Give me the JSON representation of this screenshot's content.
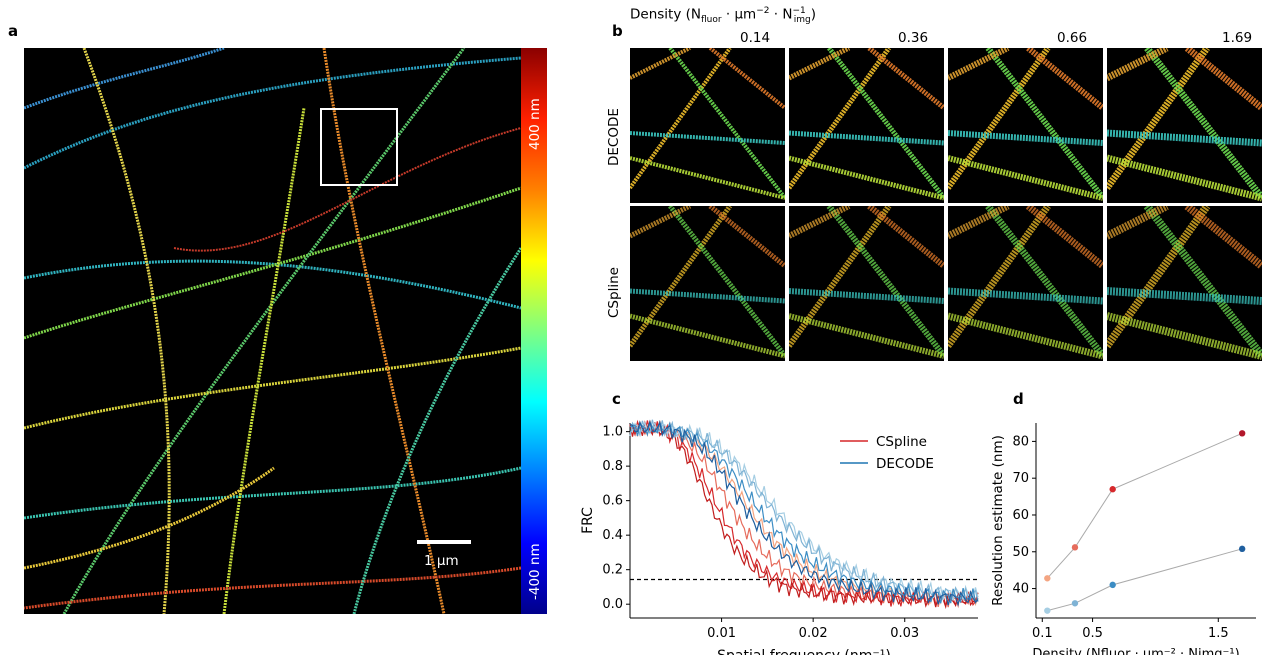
{
  "panels": {
    "a": "a",
    "b": "b",
    "c": "c",
    "d": "d"
  },
  "panel_a": {
    "colorbar_top_label": "400 nm",
    "colorbar_bottom_label": "-400 nm",
    "scalebar_label": "1 μm"
  },
  "panel_b": {
    "density_title_prefix": "Density (N",
    "density_title_sub1": "fluor",
    "density_title_mid": " · μm",
    "density_title_sup": "−2",
    "density_title_mid2": " · N",
    "density_title_sup2": "−1",
    "density_title_sub2": "img",
    "density_title_suffix": ")",
    "densities": [
      "0.14",
      "0.36",
      "0.66",
      "1.69"
    ],
    "rows": [
      "DECODE",
      "CSpline"
    ]
  },
  "chart_data": [
    {
      "type": "line",
      "panel": "c",
      "xlabel": "Spatial frequency (nm⁻¹)",
      "ylabel": "FRC",
      "xlim": [
        0,
        0.038
      ],
      "ylim": [
        -0.08,
        1.05
      ],
      "xticks": [
        "0.01",
        "0.02",
        "0.03"
      ],
      "yticks": [
        "0.0",
        "0.2",
        "0.4",
        "0.6",
        "0.8",
        "1.0"
      ],
      "threshold": 0.143,
      "legend": [
        "CSpline",
        "DECODE"
      ],
      "legend_colors": [
        "#d62728",
        "#1f77b4"
      ],
      "series": [
        {
          "name": "CSpline",
          "color": "#f4a582",
          "half": 0.0135
        },
        {
          "name": "CSpline",
          "color": "#e66c5c",
          "half": 0.0115
        },
        {
          "name": "CSpline",
          "color": "#d6292c",
          "half": 0.01
        },
        {
          "name": "CSpline",
          "color": "#c11c1c",
          "half": 0.0093
        },
        {
          "name": "DECODE",
          "color": "#a6cee3",
          "half": 0.0165
        },
        {
          "name": "DECODE",
          "color": "#7fb3d5",
          "half": 0.016
        },
        {
          "name": "DECODE",
          "color": "#3c8dc4",
          "half": 0.0145
        },
        {
          "name": "DECODE",
          "color": "#1f5f9f",
          "half": 0.013
        }
      ]
    },
    {
      "type": "scatter",
      "panel": "d",
      "xlabel": "Density (Nfluor · μm⁻² · Nimg⁻¹)",
      "ylabel": "Resolution estimate (nm)",
      "xlim": [
        0.05,
        1.8
      ],
      "ylim": [
        32,
        85
      ],
      "xticks": [
        "0.1",
        "0.5",
        "1.5"
      ],
      "yticks": [
        "40",
        "50",
        "60",
        "70",
        "80"
      ],
      "series": [
        {
          "name": "CSpline",
          "x": [
            0.14,
            0.36,
            0.66,
            1.69
          ],
          "y": [
            42.8,
            51.2,
            67.0,
            82.2
          ],
          "colors": [
            "#f4a582",
            "#e66c5c",
            "#d6292c",
            "#b2182b"
          ]
        },
        {
          "name": "DECODE",
          "x": [
            0.14,
            0.36,
            0.66,
            1.69
          ],
          "y": [
            34.0,
            36.0,
            41.0,
            50.8
          ],
          "colors": [
            "#a6cee3",
            "#7fb3d5",
            "#3c8dc4",
            "#1f5f9f"
          ]
        }
      ]
    }
  ]
}
